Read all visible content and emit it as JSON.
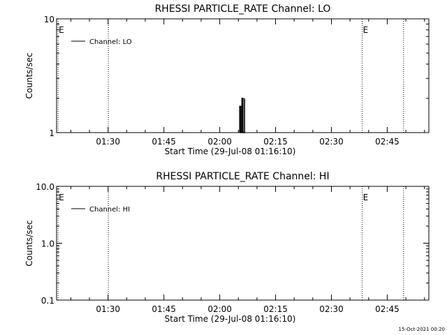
{
  "footer": {
    "timestamp": "15-Oct-2021 00:20"
  },
  "chart_data": [
    {
      "type": "line",
      "title": "RHESSI PARTICLE_RATE Channel: LO",
      "xlabel": "Start Time (29-Jul-08 01:16:10)",
      "ylabel": "Counts/sec",
      "x_unit": "minutes after 01:16:10 (29-Jul-08)",
      "xlim": [
        0,
        100
      ],
      "ylim": [
        1,
        10
      ],
      "y_scale": "log",
      "x_tick_labels": [
        "01:30",
        "01:45",
        "02:00",
        "02:15",
        "02:30",
        "02:45"
      ],
      "x_tick_values": [
        13.83,
        28.83,
        43.83,
        58.83,
        73.83,
        88.83
      ],
      "y_tick_labels": [
        "1",
        "10"
      ],
      "y_tick_values": [
        1,
        10
      ],
      "legend": {
        "label": "Channel: LO",
        "placement": "top-left"
      },
      "event_lines": [
        {
          "x": 13.9,
          "label": ""
        },
        {
          "x": 0.4,
          "label": "E"
        },
        {
          "x": 82.1,
          "label": "E"
        },
        {
          "x": 93.2,
          "label": ""
        }
      ],
      "series": [
        {
          "name": "Channel: LO",
          "x": [
            49.2,
            49.2,
            49.5,
            49.5,
            49.8,
            49.8,
            50.1,
            50.1,
            50.5,
            50.5
          ],
          "y": [
            1,
            1.7,
            1.7,
            1,
            1,
            2.0,
            2.0,
            1,
            1,
            2.0
          ]
        }
      ]
    },
    {
      "type": "line",
      "title": "RHESSI PARTICLE_RATE Channel: HI",
      "xlabel": "Start Time (29-Jul-08 01:16:10)",
      "ylabel": "Counts/sec",
      "x_unit": "minutes after 01:16:10 (29-Jul-08)",
      "xlim": [
        0,
        100
      ],
      "ylim": [
        0.1,
        10
      ],
      "y_scale": "log",
      "x_tick_labels": [
        "01:30",
        "01:45",
        "02:00",
        "02:15",
        "02:30",
        "02:45"
      ],
      "x_tick_values": [
        13.83,
        28.83,
        43.83,
        58.83,
        73.83,
        88.83
      ],
      "y_tick_labels": [
        "0.1",
        "1.0",
        "10.0"
      ],
      "y_tick_values": [
        0.1,
        1,
        10
      ],
      "legend": {
        "label": "Channel: HI",
        "placement": "top-left"
      },
      "event_lines": [
        {
          "x": 13.9,
          "label": ""
        },
        {
          "x": 0.4,
          "label": "E"
        },
        {
          "x": 82.1,
          "label": "E"
        },
        {
          "x": 93.2,
          "label": ""
        }
      ],
      "series": [
        {
          "name": "Channel: HI",
          "x": [],
          "y": []
        }
      ]
    }
  ]
}
